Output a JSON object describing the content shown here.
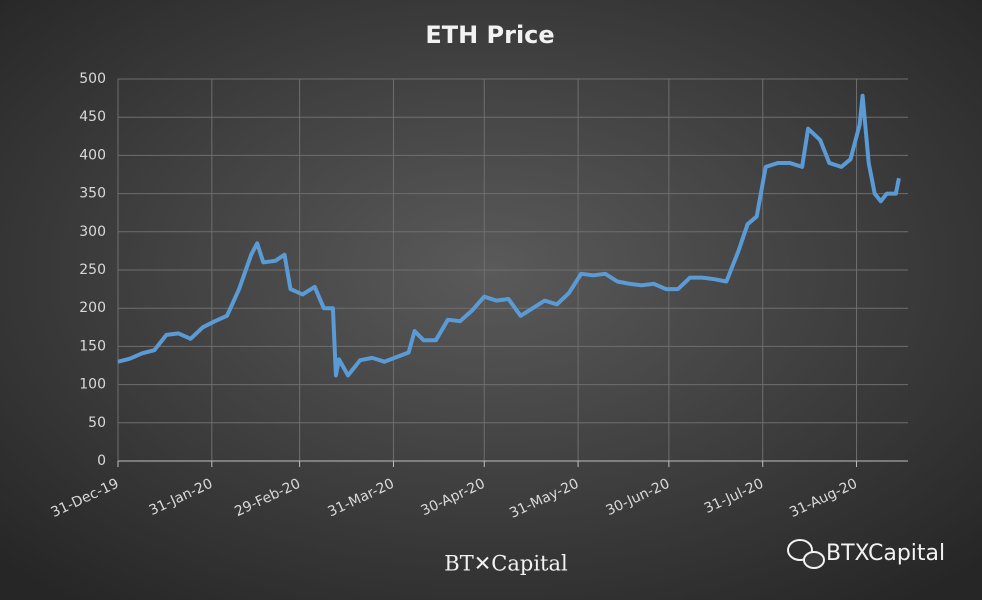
{
  "chart_data": {
    "type": "line",
    "title": "ETH Price",
    "x": [
      "2019-12-31",
      "2020-01-04",
      "2020-01-08",
      "2020-01-12",
      "2020-01-16",
      "2020-01-20",
      "2020-01-24",
      "2020-01-28",
      "2020-02-01",
      "2020-02-05",
      "2020-02-09",
      "2020-02-13",
      "2020-02-15",
      "2020-02-17",
      "2020-02-21",
      "2020-02-24",
      "2020-02-26",
      "2020-03-01",
      "2020-03-05",
      "2020-03-08",
      "2020-03-11",
      "2020-03-12",
      "2020-03-13",
      "2020-03-16",
      "2020-03-20",
      "2020-03-24",
      "2020-03-28",
      "2020-04-01",
      "2020-04-05",
      "2020-04-07",
      "2020-04-10",
      "2020-04-14",
      "2020-04-18",
      "2020-04-22",
      "2020-04-26",
      "2020-04-30",
      "2020-05-04",
      "2020-05-08",
      "2020-05-12",
      "2020-05-16",
      "2020-05-20",
      "2020-05-24",
      "2020-05-28",
      "2020-06-01",
      "2020-06-05",
      "2020-06-09",
      "2020-06-13",
      "2020-06-17",
      "2020-06-21",
      "2020-06-25",
      "2020-06-29",
      "2020-07-03",
      "2020-07-07",
      "2020-07-11",
      "2020-07-15",
      "2020-07-19",
      "2020-07-23",
      "2020-07-26",
      "2020-07-29",
      "2020-08-01",
      "2020-08-05",
      "2020-08-09",
      "2020-08-13",
      "2020-08-15",
      "2020-08-19",
      "2020-08-22",
      "2020-08-26",
      "2020-08-29",
      "2020-09-01",
      "2020-09-02",
      "2020-09-04",
      "2020-09-06",
      "2020-09-08",
      "2020-09-10",
      "2020-09-13",
      "2020-09-14"
    ],
    "series": [
      {
        "name": "ETH Price",
        "color": "#5b9bd5",
        "values": [
          130,
          134,
          141,
          145,
          165,
          167,
          160,
          175,
          183,
          190,
          225,
          270,
          285,
          260,
          262,
          270,
          225,
          218,
          228,
          200,
          200,
          112,
          133,
          112,
          132,
          135,
          130,
          136,
          142,
          170,
          158,
          158,
          185,
          183,
          197,
          215,
          210,
          212,
          190,
          200,
          210,
          205,
          220,
          245,
          243,
          245,
          235,
          232,
          230,
          232,
          225,
          225,
          240,
          240,
          238,
          235,
          275,
          310,
          320,
          385,
          390,
          390,
          385,
          435,
          420,
          390,
          385,
          395,
          440,
          478,
          390,
          350,
          340,
          350,
          350,
          370
        ]
      }
    ],
    "xlim": [
      "2019-12-31",
      "2020-09-17"
    ],
    "xticks": [
      {
        "value": "2019-12-31",
        "label": "31-Dec-19"
      },
      {
        "value": "2020-01-31",
        "label": "31-Jan-20"
      },
      {
        "value": "2020-02-29",
        "label": "29-Feb-20"
      },
      {
        "value": "2020-03-31",
        "label": "31-Mar-20"
      },
      {
        "value": "2020-04-30",
        "label": "30-Apr-20"
      },
      {
        "value": "2020-05-31",
        "label": "31-May-20"
      },
      {
        "value": "2020-06-30",
        "label": "30-Jun-20"
      },
      {
        "value": "2020-07-31",
        "label": "31-Jul-20"
      },
      {
        "value": "2020-08-31",
        "label": "31-Aug-20"
      }
    ],
    "ylim": [
      0,
      500
    ],
    "yticks": [
      0,
      50,
      100,
      150,
      200,
      250,
      300,
      350,
      400,
      450,
      500
    ],
    "grid": true,
    "logo": "BT✕Capital",
    "watermark": "BTXCapital"
  }
}
